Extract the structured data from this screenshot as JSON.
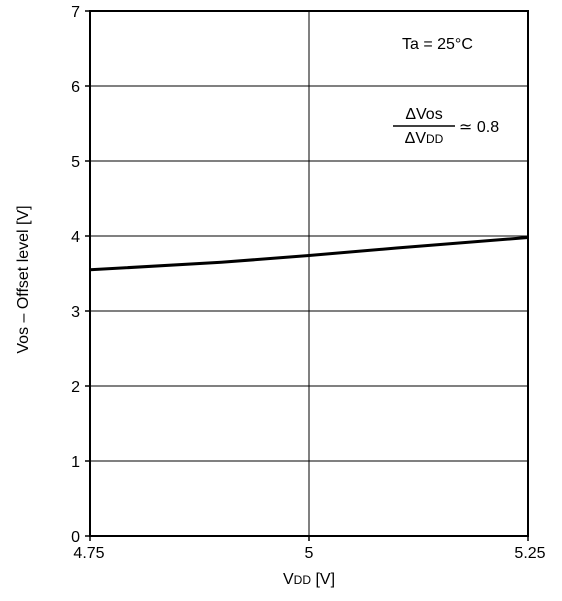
{
  "chart_data": {
    "type": "line",
    "xlabel": "VDD [V]",
    "ylabel": "Vos – Offset level [V]",
    "xlim": [
      4.75,
      5.25
    ],
    "ylim": [
      0,
      7
    ],
    "x_ticks": [
      "4.75",
      "5",
      "5.25"
    ],
    "y_ticks": [
      "0",
      "1",
      "2",
      "3",
      "4",
      "5",
      "6",
      "7"
    ],
    "y_tick_values": [
      0,
      1,
      2,
      3,
      4,
      5,
      6,
      7
    ],
    "grid": true,
    "series": [
      {
        "x": [
          4.75,
          4.9,
          5.0,
          5.1,
          5.25
        ],
        "values": [
          3.55,
          3.65,
          3.74,
          3.84,
          3.98
        ]
      }
    ],
    "annotations": {
      "temperature": "Ta = 25°C",
      "ratio_numerator": "ΔVos",
      "ratio_denominator": "ΔVDD",
      "ratio_value": "≃ 0.8"
    }
  }
}
